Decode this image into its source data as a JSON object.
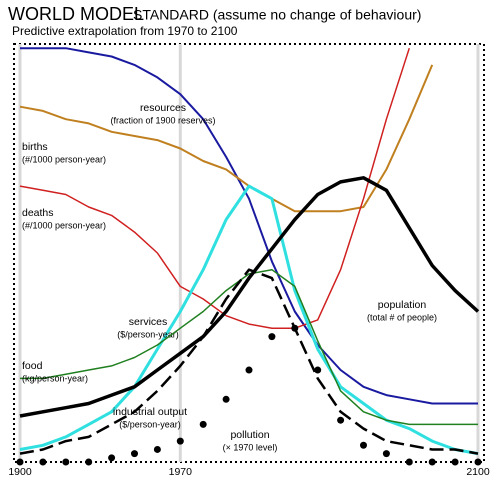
{
  "chart_data": {
    "type": "line",
    "title": "WORLD MODEL",
    "title_note": "STANDARD (assume no change of behaviour)",
    "subtitle": "Predictive extrapolation from 1970 to 2100",
    "x": [
      1900,
      1910,
      1920,
      1930,
      1940,
      1950,
      1960,
      1970,
      1980,
      1990,
      2000,
      2010,
      2020,
      2030,
      2040,
      2050,
      2060,
      2070,
      2080,
      2090,
      2100
    ],
    "xlim": [
      1900,
      2100
    ],
    "xticks": [
      1900,
      1970,
      2100
    ],
    "ylim": [
      0,
      100
    ],
    "grid": true,
    "series": [
      {
        "name": "resources",
        "unit": "(fraction of 1900 reserves)",
        "color": "#1a1aa0",
        "values": [
          99,
          99,
          99,
          98,
          97,
          95,
          92,
          88,
          82,
          73,
          63,
          48,
          36,
          28,
          22,
          18,
          16,
          15,
          14,
          14,
          14
        ]
      },
      {
        "name": "births",
        "unit": "(#/1000 person-year)",
        "color": "#c08020",
        "values": [
          85,
          84,
          82,
          81,
          79,
          78,
          77,
          75,
          72,
          70,
          66,
          63,
          60,
          60,
          60,
          61,
          70,
          82,
          95,
          null,
          null
        ]
      },
      {
        "name": "deaths",
        "unit": "(#/1000 person-year)",
        "color": "#d02020",
        "values": [
          66,
          65,
          64,
          61,
          59,
          55,
          50,
          42,
          39,
          35,
          33,
          32,
          32,
          34,
          46,
          63,
          82,
          99,
          null,
          null,
          null
        ]
      },
      {
        "name": "services",
        "unit": "($/person-year)",
        "color": "#30e0e0",
        "values": [
          3,
          4,
          6,
          9,
          12,
          18,
          27,
          36,
          46,
          58,
          66,
          63,
          41,
          27,
          18,
          14,
          10,
          8,
          5,
          3,
          2
        ]
      },
      {
        "name": "food",
        "unit": "(kg/person-year)",
        "color": "#208020",
        "values": [
          20,
          20,
          21,
          22,
          23,
          25,
          28,
          32,
          36,
          41,
          45,
          46,
          42,
          29,
          17,
          12,
          10,
          9,
          9,
          9,
          9
        ]
      },
      {
        "name": "population",
        "unit": "(total # of people)",
        "color": "#000000",
        "values": [
          11,
          12,
          13,
          14,
          16,
          18,
          22,
          26,
          30,
          36,
          44,
          51,
          58,
          64,
          67,
          68,
          65,
          56,
          47,
          41,
          36
        ]
      },
      {
        "name": "industrial output",
        "unit": "($/person-year)",
        "color": "#000000",
        "values": [
          2,
          3,
          5,
          6,
          9,
          12,
          17,
          23,
          30,
          39,
          46,
          44,
          32,
          20,
          12,
          8,
          5,
          4,
          3,
          3,
          2
        ]
      },
      {
        "name": "pollution",
        "unit": "(× 1970 level)",
        "color": "#000000",
        "values": [
          0,
          0,
          0,
          0,
          1,
          2,
          3,
          5,
          9,
          15,
          22,
          30,
          32,
          22,
          10,
          4,
          2,
          0,
          0,
          0,
          0
        ]
      }
    ]
  }
}
